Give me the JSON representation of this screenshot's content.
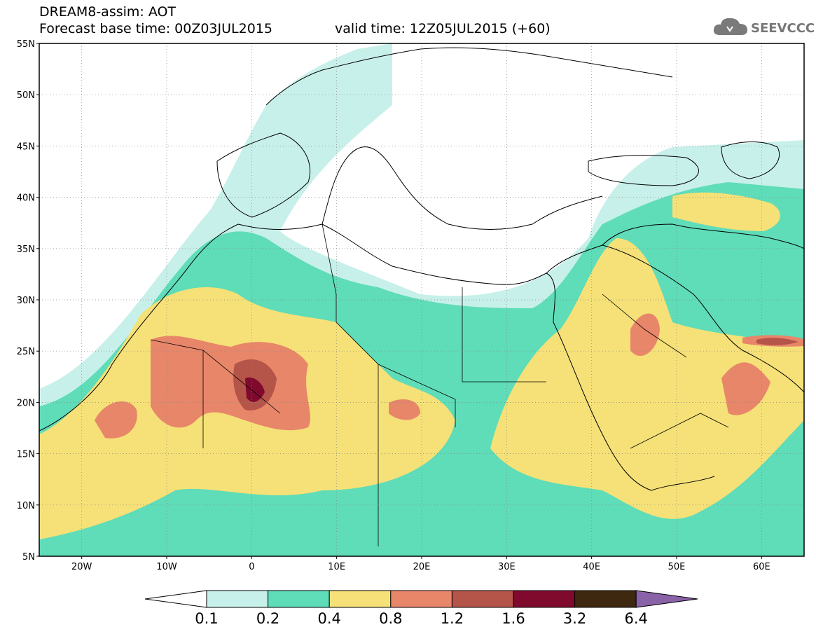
{
  "header": {
    "product": "DREAM8-assim: AOT",
    "base_time": "Forecast base time: 00Z03JUL2015",
    "valid_time": "valid time: 12Z05JUL2015 (+60)"
  },
  "logo": {
    "text": "SEEVCCC",
    "icon": "cloud-icon"
  },
  "map": {
    "lat_labels": [
      "55N",
      "50N",
      "45N",
      "40N",
      "35N",
      "30N",
      "25N",
      "20N",
      "15N",
      "10N",
      "5N"
    ],
    "lat_values": [
      55,
      50,
      45,
      40,
      35,
      30,
      25,
      20,
      15,
      10,
      5
    ],
    "lon_labels": [
      "20W",
      "10W",
      "0",
      "10E",
      "20E",
      "30E",
      "40E",
      "50E",
      "60E"
    ],
    "lon_values": [
      -20,
      -10,
      0,
      10,
      20,
      30,
      40,
      50,
      60
    ],
    "extent": {
      "lon_min": -25,
      "lon_max": 65,
      "lat_min": 5,
      "lat_max": 55
    },
    "grid": "dotted"
  },
  "colorbar": {
    "labels": [
      "0.1",
      "0.2",
      "0.4",
      "0.8",
      "1.2",
      "1.6",
      "3.2",
      "6.4"
    ],
    "colors": [
      "#ffffff",
      "#c8f0ea",
      "#5fdcb8",
      "#f5e177",
      "#e8866a",
      "#b55448",
      "#7f0a2e",
      "#3f2810",
      "#8a62a8"
    ]
  }
}
